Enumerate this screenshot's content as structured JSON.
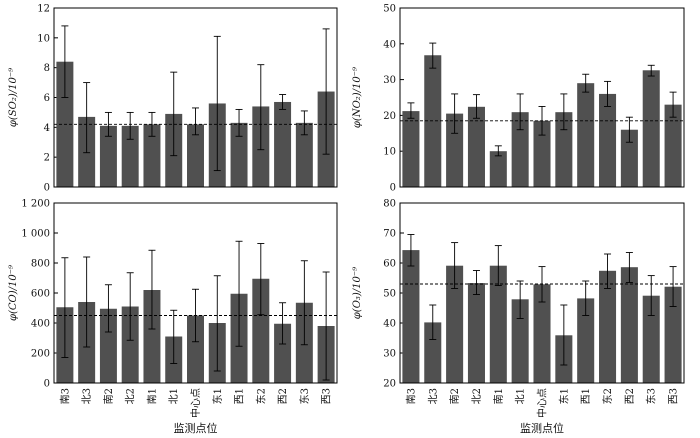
{
  "chart_data": [
    {
      "type": "bar",
      "ylabel": "φ(SO₂)/10⁻⁹",
      "ylim": [
        0,
        12
      ],
      "yticks": [
        "0",
        "2",
        "4",
        "6",
        "8",
        "10",
        "12"
      ],
      "xlabel": "",
      "categories": [
        "南3",
        "北3",
        "南2",
        "北2",
        "南1",
        "北1",
        "中心点",
        "东1",
        "西1",
        "东2",
        "西2",
        "东3",
        "西3"
      ],
      "values": [
        8.4,
        4.7,
        4.1,
        4.1,
        4.2,
        4.9,
        4.2,
        5.6,
        4.3,
        5.4,
        5.7,
        4.3,
        6.4
      ],
      "err_low": [
        6.0,
        2.3,
        3.4,
        3.2,
        3.4,
        2.1,
        3.5,
        1.1,
        3.4,
        2.5,
        5.2,
        3.5,
        2.2
      ],
      "err_high": [
        10.8,
        7.0,
        5.0,
        5.0,
        5.0,
        7.7,
        5.3,
        10.1,
        5.2,
        8.2,
        6.2,
        5.1,
        10.6
      ],
      "reference_line": 4.2,
      "grid": false
    },
    {
      "type": "bar",
      "ylabel": "φ(NO₂)/10⁻⁹",
      "ylim": [
        0,
        50
      ],
      "yticks": [
        "0",
        "10",
        "20",
        "30",
        "40",
        "50"
      ],
      "xlabel": "",
      "categories": [
        "南3",
        "北3",
        "南2",
        "北2",
        "南1",
        "北1",
        "中心点",
        "东1",
        "西1",
        "东2",
        "西2",
        "东3",
        "西3"
      ],
      "values": [
        21.2,
        36.8,
        20.5,
        22.4,
        10.0,
        20.9,
        18.5,
        20.9,
        29.0,
        26.0,
        16.0,
        32.6,
        23.0
      ],
      "err_low": [
        19.2,
        33.2,
        15.0,
        19.2,
        8.7,
        16.0,
        14.5,
        16.0,
        26.5,
        22.5,
        12.5,
        31.0,
        19.5
      ],
      "err_high": [
        23.5,
        40.2,
        26.0,
        25.8,
        11.5,
        26.0,
        22.5,
        26.0,
        31.5,
        29.5,
        19.5,
        34.0,
        26.5
      ],
      "reference_line": 18.5,
      "grid": false
    },
    {
      "type": "bar",
      "ylabel": "φ(CO)/10⁻⁹",
      "ylim": [
        0,
        1200
      ],
      "yticks": [
        "0",
        "200",
        "400",
        "600",
        "800",
        "1 000",
        "1 200"
      ],
      "xlabel": "监测点位",
      "categories": [
        "南3",
        "北3",
        "南2",
        "北2",
        "南1",
        "北1",
        "中心点",
        "东1",
        "西1",
        "东2",
        "西2",
        "东3",
        "西3"
      ],
      "values": [
        505,
        540,
        495,
        510,
        620,
        310,
        450,
        400,
        595,
        695,
        395,
        535,
        380
      ],
      "err_low": [
        170,
        240,
        340,
        285,
        360,
        130,
        275,
        80,
        245,
        455,
        260,
        255,
        20
      ],
      "err_high": [
        835,
        840,
        655,
        735,
        885,
        485,
        625,
        715,
        945,
        930,
        535,
        815,
        740
      ],
      "reference_line": 450,
      "grid": false
    },
    {
      "type": "bar",
      "ylabel": "φ(O₃)/10⁻⁹",
      "ylim": [
        20,
        80
      ],
      "yticks": [
        "20",
        "30",
        "40",
        "50",
        "60",
        "70",
        "80"
      ],
      "xlabel": "监测点位",
      "categories": [
        "南3",
        "北3",
        "南2",
        "北2",
        "南1",
        "北1",
        "中心点",
        "东1",
        "西1",
        "东2",
        "西2",
        "东3",
        "西3"
      ],
      "values": [
        64.3,
        40.2,
        59.1,
        53.3,
        59.1,
        47.9,
        52.9,
        35.9,
        48.2,
        57.4,
        58.6,
        49.1,
        52.1
      ],
      "err_low": [
        59.0,
        34.5,
        51.5,
        49.5,
        52.5,
        41.5,
        47.0,
        26.0,
        42.5,
        51.5,
        53.5,
        42.5,
        45.5
      ],
      "err_high": [
        69.5,
        46.0,
        66.8,
        57.5,
        65.8,
        54.0,
        58.8,
        46.0,
        54.0,
        63.0,
        63.5,
        55.8,
        58.8
      ],
      "reference_line": 53,
      "grid": false
    }
  ]
}
